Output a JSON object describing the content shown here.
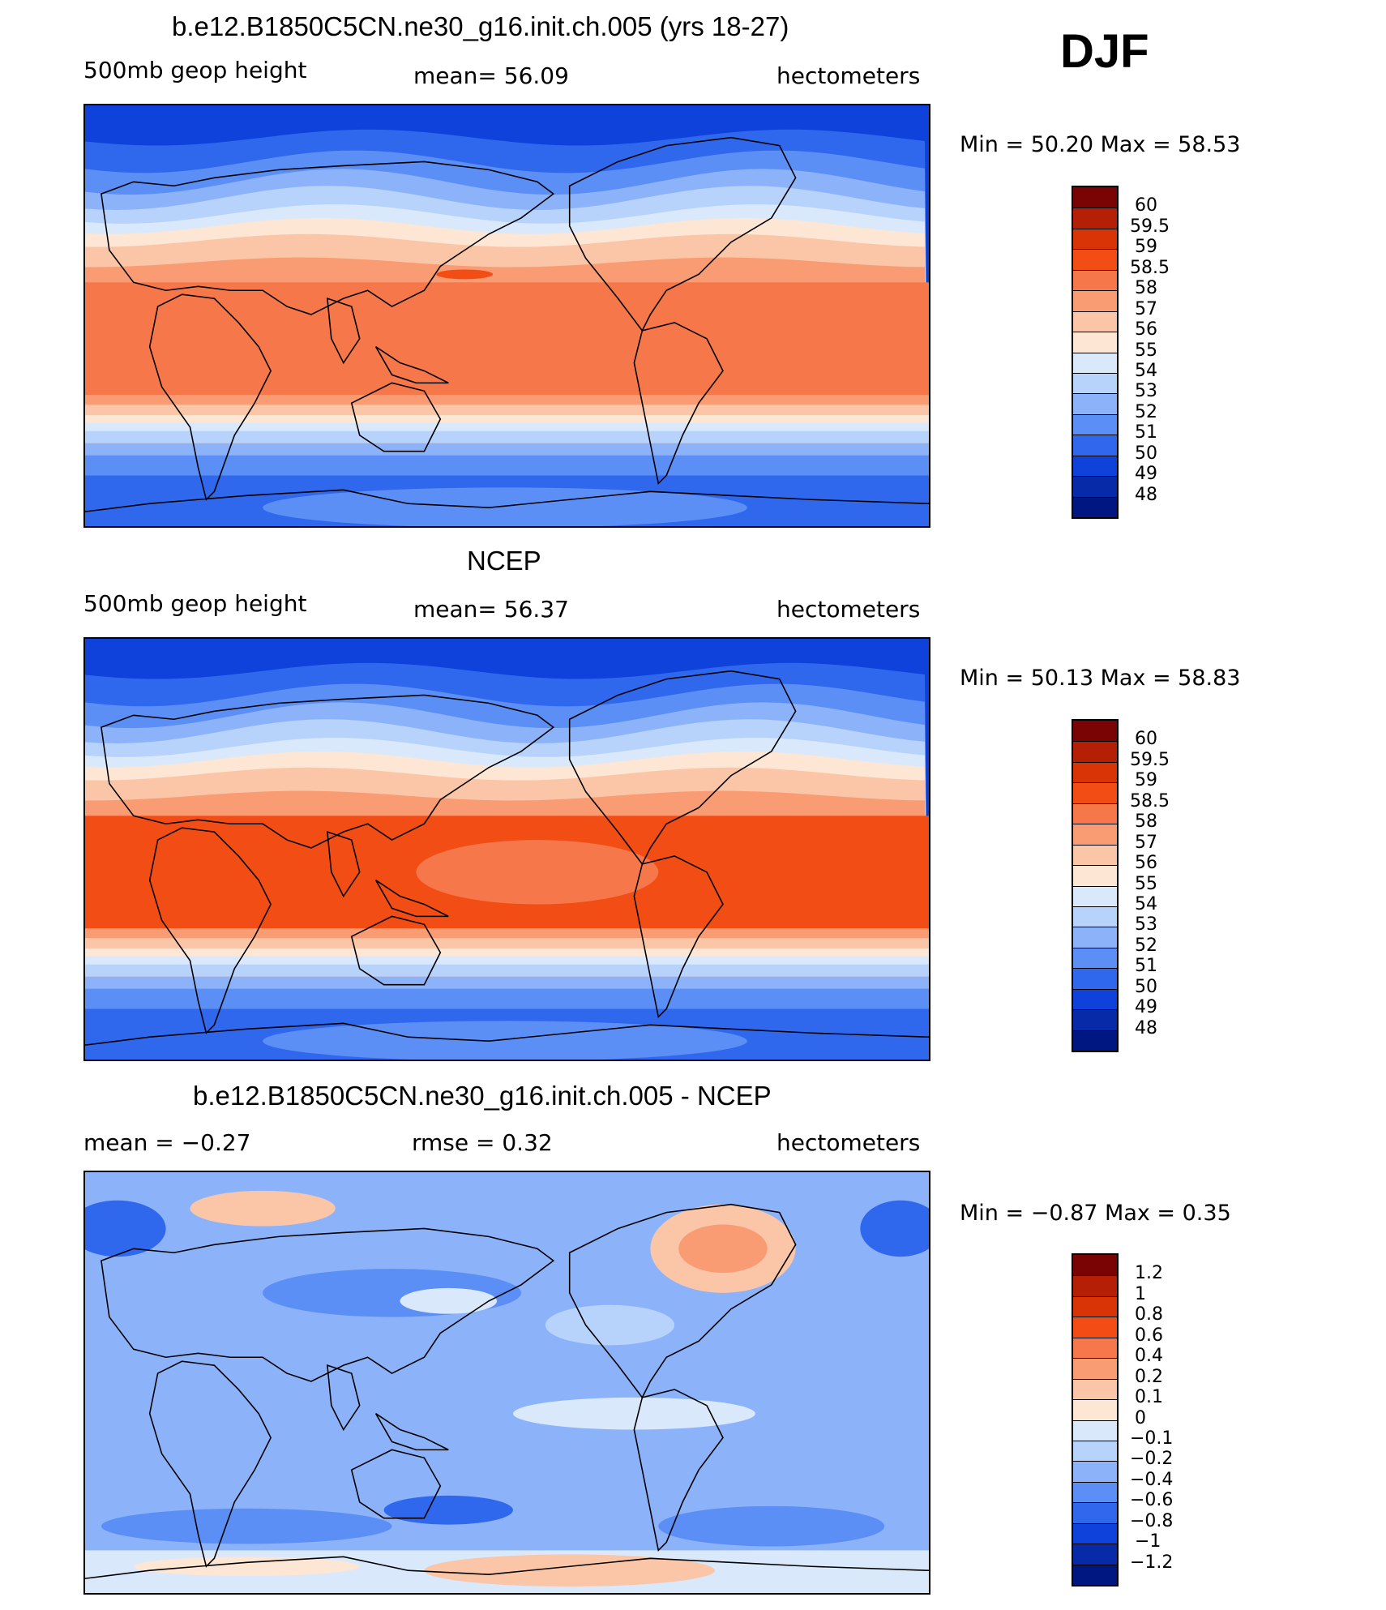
{
  "season": "DJF",
  "panels": [
    {
      "title": "b.e12.B1850C5CN.ne30_g16.init.ch.005 (yrs 18-27)",
      "left_label": "500mb geop height",
      "center_label": "mean=  56.09",
      "right_label": "hectometers",
      "minmax": "Min =   50.20 Max =   58.53",
      "mean_value": 56.09,
      "min_value": 50.2,
      "max_value": 58.53,
      "type": "abs",
      "colorbar": {
        "labels": [
          "60",
          "59.5",
          "59",
          "58.5",
          "58",
          "57",
          "56",
          "55",
          "54",
          "53",
          "52",
          "51",
          "50",
          "49",
          "48"
        ],
        "colors": [
          "#7a0403",
          "#b51f05",
          "#d93406",
          "#f34d16",
          "#f5774a",
          "#f99c74",
          "#fbc6a8",
          "#fde6d3",
          "#d9e9fb",
          "#b7d2fb",
          "#8cb3fa",
          "#5c8ff5",
          "#2f68ed",
          "#0f41db",
          "#062aa8",
          "#001782"
        ]
      }
    },
    {
      "title": "NCEP",
      "left_label": "500mb geop height",
      "center_label": "mean=  56.37",
      "right_label": "hectometers",
      "minmax": "Min =   50.13 Max =   58.83",
      "mean_value": 56.37,
      "min_value": 50.13,
      "max_value": 58.83,
      "type": "abs",
      "colorbar": {
        "labels": [
          "60",
          "59.5",
          "59",
          "58.5",
          "58",
          "57",
          "56",
          "55",
          "54",
          "53",
          "52",
          "51",
          "50",
          "49",
          "48"
        ],
        "colors": [
          "#7a0403",
          "#b51f05",
          "#d93406",
          "#f34d16",
          "#f5774a",
          "#f99c74",
          "#fbc6a8",
          "#fde6d3",
          "#d9e9fb",
          "#b7d2fb",
          "#8cb3fa",
          "#5c8ff5",
          "#2f68ed",
          "#0f41db",
          "#062aa8",
          "#001782"
        ]
      }
    },
    {
      "title": "b.e12.B1850C5CN.ne30_g16.init.ch.005 - NCEP",
      "left_label": "mean =   −0.27",
      "center_label": "rmse =    0.32",
      "right_label": "hectometers",
      "minmax": "Min =   −0.87 Max =    0.35",
      "mean_value": -0.27,
      "rmse_value": 0.32,
      "min_value": -0.87,
      "max_value": 0.35,
      "type": "diff",
      "colorbar": {
        "labels": [
          "1.2",
          "1",
          "0.8",
          "0.6",
          "0.4",
          "0.2",
          "0.1",
          "0",
          "−0.1",
          "−0.2",
          "−0.4",
          "−0.6",
          "−0.8",
          "−1",
          "−1.2"
        ],
        "colors": [
          "#7a0403",
          "#b51f05",
          "#d93406",
          "#f34d16",
          "#f5774a",
          "#f99c74",
          "#fbc6a8",
          "#fde6d3",
          "#d9e9fb",
          "#b7d2fb",
          "#8cb3fa",
          "#5c8ff5",
          "#2f68ed",
          "#0f41db",
          "#062aa8",
          "#001782"
        ]
      }
    }
  ]
}
